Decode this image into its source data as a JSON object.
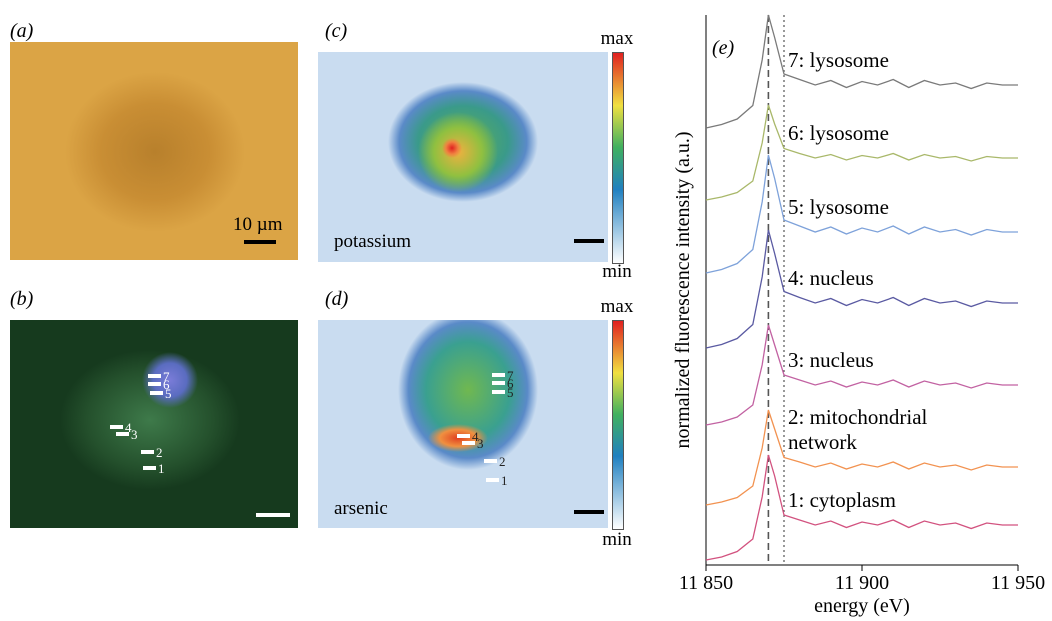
{
  "panels": {
    "a": {
      "label": "(a)",
      "scale_bar": "10 µm"
    },
    "b": {
      "label": "(b)",
      "regions": [
        "7",
        "6",
        "5",
        "4",
        "3",
        "2",
        "1"
      ]
    },
    "c": {
      "label": "(c)",
      "element": "potassium",
      "colorbar_max": "max",
      "colorbar_min": "min"
    },
    "d": {
      "label": "(d)",
      "element": "arsenic",
      "colorbar_max": "max",
      "colorbar_min": "min",
      "regions": [
        "7",
        "6",
        "5",
        "4",
        "3",
        "2",
        "1"
      ]
    }
  },
  "chart_data": {
    "type": "line",
    "panel_label": "(e)",
    "x_label": "energy (eV)",
    "y_label": "normalized fluorescence intensity (a.u.)",
    "x": [
      11850,
      11855,
      11860,
      11865,
      11868,
      11870,
      11872,
      11875,
      11880,
      11885,
      11890,
      11895,
      11900,
      11905,
      11910,
      11915,
      11920,
      11925,
      11930,
      11935,
      11940,
      11945,
      11950
    ],
    "xlim": [
      11850,
      11950
    ],
    "xticks": [
      {
        "value": 11850,
        "label": "11 850"
      },
      {
        "value": 11900,
        "label": "11 900"
      },
      {
        "value": 11950,
        "label": "11 950"
      }
    ],
    "ylim": [
      0,
      11
    ],
    "vlines": [
      {
        "value": 11870,
        "style": "dashed"
      },
      {
        "value": 11875,
        "style": "dotted"
      }
    ],
    "series": [
      {
        "name": "7: lysosome",
        "color": "#7a7a7a",
        "values": [
          8.74,
          8.81,
          8.92,
          9.19,
          10.1,
          11.0,
          10.55,
          9.82,
          9.71,
          9.6,
          9.69,
          9.55,
          9.67,
          9.6,
          9.71,
          9.55,
          9.69,
          9.6,
          9.64,
          9.53,
          9.64,
          9.6,
          9.6
        ]
      },
      {
        "name": "6: lysosome",
        "color": "#a9b86a",
        "values": [
          7.3,
          7.36,
          7.45,
          7.68,
          8.44,
          9.2,
          8.82,
          8.33,
          8.23,
          8.14,
          8.21,
          8.1,
          8.19,
          8.14,
          8.23,
          8.1,
          8.21,
          8.14,
          8.17,
          8.08,
          8.17,
          8.14,
          8.14
        ]
      },
      {
        "name": "5: lysosome",
        "color": "#7ea2da",
        "values": [
          5.84,
          5.91,
          6.03,
          6.31,
          7.26,
          8.2,
          7.73,
          6.9,
          6.78,
          6.66,
          6.76,
          6.62,
          6.74,
          6.66,
          6.78,
          6.62,
          6.76,
          6.66,
          6.71,
          6.6,
          6.71,
          6.66,
          6.66
        ]
      },
      {
        "name": "4: nucleus",
        "color": "#5a5aa2",
        "values": [
          4.34,
          4.41,
          4.53,
          4.81,
          5.76,
          6.7,
          6.23,
          5.47,
          5.35,
          5.24,
          5.33,
          5.19,
          5.31,
          5.24,
          5.35,
          5.19,
          5.33,
          5.24,
          5.28,
          5.17,
          5.28,
          5.24,
          5.24
        ]
      },
      {
        "name": "3: nucleus",
        "color": "#c262a2",
        "values": [
          2.8,
          2.86,
          2.96,
          3.2,
          4.0,
          4.8,
          4.4,
          3.8,
          3.7,
          3.6,
          3.68,
          3.56,
          3.66,
          3.6,
          3.7,
          3.56,
          3.68,
          3.6,
          3.64,
          3.54,
          3.64,
          3.6,
          3.6
        ]
      },
      {
        "name": "2: mitochondrial network",
        "color": "#f29250",
        "values": [
          1.2,
          1.26,
          1.35,
          1.58,
          2.34,
          3.1,
          2.72,
          2.15,
          2.06,
          1.96,
          2.04,
          1.92,
          2.02,
          1.96,
          2.06,
          1.92,
          2.04,
          1.96,
          2.0,
          1.9,
          2.0,
          1.96,
          1.96
        ]
      },
      {
        "name": "1: cytoplasm",
        "color": "#d2527f",
        "values": [
          0.1,
          0.16,
          0.27,
          0.52,
          1.36,
          2.2,
          1.78,
          1.0,
          0.9,
          0.8,
          0.88,
          0.75,
          0.86,
          0.8,
          0.9,
          0.75,
          0.88,
          0.8,
          0.84,
          0.73,
          0.84,
          0.8,
          0.8
        ]
      }
    ]
  }
}
